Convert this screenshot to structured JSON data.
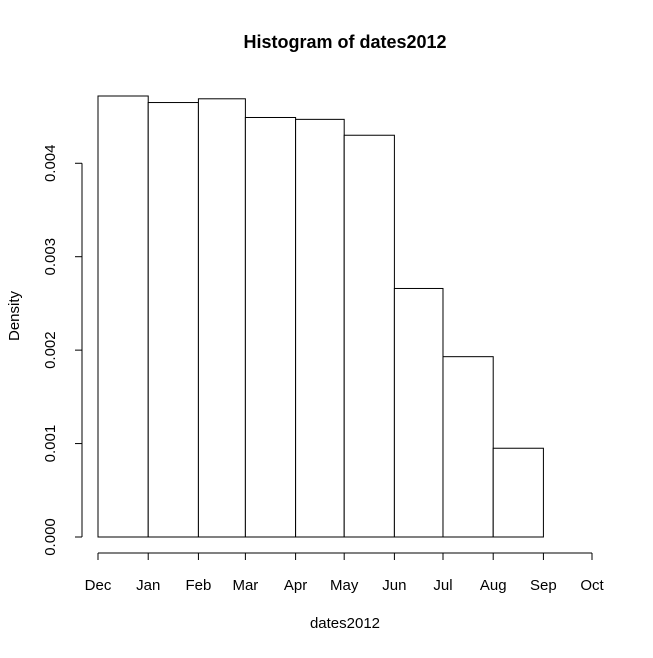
{
  "chart_data": {
    "type": "bar",
    "title": "Histogram of dates2012",
    "xlabel": "dates2012",
    "ylabel": "Density",
    "x_tick_labels": [
      "Dec",
      "Jan",
      "Feb",
      "Mar",
      "Apr",
      "May",
      "Jun",
      "Jul",
      "Aug",
      "Sep",
      "Oct"
    ],
    "x_breaks": [
      "2011-12-01",
      "2012-01-01",
      "2012-02-01",
      "2012-03-01",
      "2012-04-01",
      "2012-05-01",
      "2012-06-01",
      "2012-07-01",
      "2012-08-01",
      "2012-09-01",
      "2012-10-01"
    ],
    "values": [
      0.00472,
      0.00465,
      0.00469,
      0.00449,
      0.00447,
      0.0043,
      0.00266,
      0.00193,
      0.00095,
      0.0
    ],
    "y_ticks": [
      0.0,
      0.001,
      0.002,
      0.003,
      0.004
    ],
    "y_tick_labels": [
      "0.000",
      "0.001",
      "0.002",
      "0.003",
      "0.004"
    ],
    "ylim": [
      0.0,
      0.00472
    ],
    "grid": false,
    "legend": false,
    "colors": {
      "bar_fill": "#ffffff",
      "bar_stroke": "#000000",
      "axis": "#000000"
    }
  }
}
